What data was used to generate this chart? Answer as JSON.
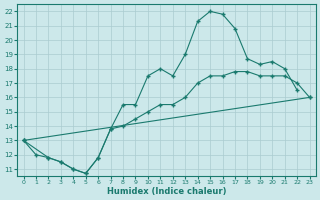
{
  "xlabel": "Humidex (Indice chaleur)",
  "bg_color": "#cce8ea",
  "grid_color": "#aaccd0",
  "line_color": "#1a7a6e",
  "xlim": [
    -0.5,
    23.5
  ],
  "ylim": [
    10.5,
    22.5
  ],
  "xticks": [
    0,
    1,
    2,
    3,
    4,
    5,
    6,
    7,
    8,
    9,
    10,
    11,
    12,
    13,
    14,
    15,
    16,
    17,
    18,
    19,
    20,
    21,
    22,
    23
  ],
  "yticks": [
    11,
    12,
    13,
    14,
    15,
    16,
    17,
    18,
    19,
    20,
    21,
    22
  ],
  "line1_x": [
    0,
    1,
    2,
    3,
    4,
    5,
    6,
    7,
    8,
    9,
    10,
    11,
    12,
    13,
    14,
    15,
    16,
    17,
    18,
    19,
    20,
    21,
    22
  ],
  "line1_y": [
    13,
    12,
    11.8,
    11.5,
    11,
    10.7,
    11.8,
    13.8,
    15.5,
    15.5,
    17.5,
    18,
    17.5,
    19,
    21.3,
    22,
    21.8,
    20.8,
    18.7,
    18.3,
    18.5,
    18,
    16.5
  ],
  "line2_x": [
    0,
    2,
    3,
    4,
    5,
    6,
    7,
    8,
    9,
    10,
    11,
    12,
    13,
    14,
    15,
    16,
    17,
    18,
    19,
    20,
    21,
    22,
    23
  ],
  "line2_y": [
    13,
    11.8,
    11.5,
    11,
    10.7,
    11.8,
    13.8,
    14,
    14.5,
    15,
    15.5,
    15.5,
    16,
    17,
    17.5,
    17.5,
    17.8,
    17.8,
    17.5,
    17.5,
    17.5,
    17,
    16
  ],
  "line3_x": [
    0,
    23
  ],
  "line3_y": [
    13,
    16
  ]
}
